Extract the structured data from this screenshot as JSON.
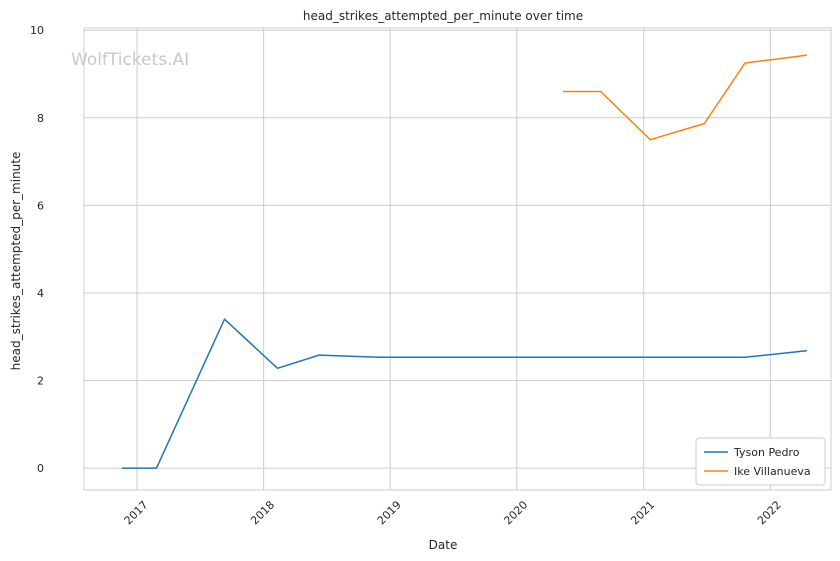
{
  "watermark": "WolfTickets.AI",
  "colors": {
    "grid": "#cccccc",
    "spine": "#cccccc",
    "background": "#ffffff"
  },
  "chart_data": {
    "type": "line",
    "title": "head_strikes_attempted_per_minute over time",
    "xlabel": "Date",
    "ylabel": "head_strikes_attempted_per_minute",
    "x_axis_type": "date",
    "xlim": [
      "2016-08-01",
      "2022-06-25"
    ],
    "ylim": [
      -0.5,
      10.05
    ],
    "grid": true,
    "legend_position": "lower-right",
    "x_ticks": [
      {
        "date": "2017-01-01",
        "label": "2017"
      },
      {
        "date": "2018-01-01",
        "label": "2018"
      },
      {
        "date": "2019-01-01",
        "label": "2019"
      },
      {
        "date": "2020-01-01",
        "label": "2020"
      },
      {
        "date": "2021-01-01",
        "label": "2021"
      },
      {
        "date": "2022-01-01",
        "label": "2022"
      }
    ],
    "y_ticks": [
      {
        "value": 0,
        "label": "0"
      },
      {
        "value": 2,
        "label": "2"
      },
      {
        "value": 4,
        "label": "4"
      },
      {
        "value": 6,
        "label": "6"
      },
      {
        "value": 8,
        "label": "8"
      },
      {
        "value": 10,
        "label": "10"
      }
    ],
    "series": [
      {
        "name": "Tyson Pedro",
        "color": "#1f77b4",
        "points": [
          {
            "x": "2016-11-20",
            "y": 0.0
          },
          {
            "x": "2017-02-26",
            "y": 0.0
          },
          {
            "x": "2017-09-10",
            "y": 3.4
          },
          {
            "x": "2018-02-10",
            "y": 2.28
          },
          {
            "x": "2018-06-10",
            "y": 2.58
          },
          {
            "x": "2018-12-01",
            "y": 2.53
          },
          {
            "x": "2020-04-01",
            "y": 2.53
          },
          {
            "x": "2021-10-20",
            "y": 2.53
          },
          {
            "x": "2022-04-15",
            "y": 2.68
          }
        ]
      },
      {
        "name": "Ike Villanueva",
        "color": "#ff7f0e",
        "points": [
          {
            "x": "2020-05-15",
            "y": 8.6
          },
          {
            "x": "2020-08-30",
            "y": 8.6
          },
          {
            "x": "2021-01-20",
            "y": 7.5
          },
          {
            "x": "2021-06-25",
            "y": 7.87
          },
          {
            "x": "2021-10-20",
            "y": 9.25
          },
          {
            "x": "2022-04-15",
            "y": 9.43
          }
        ]
      }
    ]
  }
}
